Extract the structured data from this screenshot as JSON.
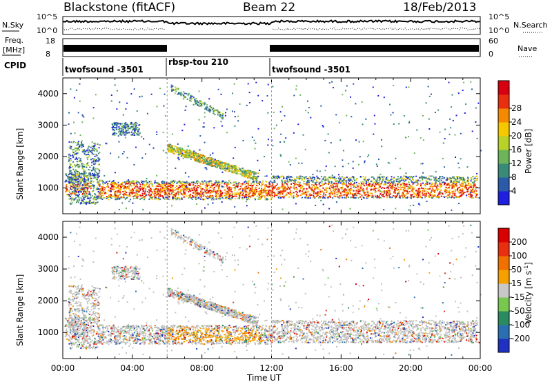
{
  "header": {
    "station": "Blackstone (fitACF)",
    "beam": "Beam 22",
    "date": "18/Feb/2013"
  },
  "top_panels": {
    "nsky_label": "N.Sky",
    "nsky_ticks": [
      "10^5",
      "10^0"
    ],
    "nsearch_label": "N.Search",
    "nsearch_ticks": [
      "10^5",
      "10^0"
    ],
    "freq_label_1": "Freq.",
    "freq_label_2": "[MHz]",
    "freq_ticks": [
      "18",
      "8"
    ],
    "nave_label": "Nave",
    "nave_ticks": [
      "60",
      "0"
    ],
    "cpid_label": "CPID",
    "programs": [
      {
        "name": "twofsound -3501",
        "start_hour": 0,
        "end_hour": 6
      },
      {
        "name": "rbsp-tou 210",
        "start_hour": 6,
        "end_hour": 12
      },
      {
        "name": "twofsound -3501",
        "start_hour": 12,
        "end_hour": 24
      }
    ]
  },
  "chart_data": [
    {
      "type": "heatmap",
      "title": "",
      "xlabel": "Time UT",
      "ylabel": "Slant Range [km]",
      "xlim": [
        0,
        24
      ],
      "ylim": [
        180,
        4500
      ],
      "x_ticks": [
        "00:00",
        "04:00",
        "08:00",
        "12:00",
        "16:00",
        "20:00",
        "00:00"
      ],
      "y_ticks": [
        "1000",
        "2000",
        "3000",
        "4000"
      ],
      "colorbar": {
        "label": "Power [dB]",
        "ticks": [
          "4",
          "8",
          "12",
          "16",
          "20",
          "24",
          "28"
        ],
        "colors": [
          "#1f1fe0",
          "#2a5aa8",
          "#3a8a78",
          "#6db35a",
          "#b8d22a",
          "#f5c800",
          "#f58a00",
          "#e83010",
          "#d80010"
        ]
      },
      "features": [
        {
          "name": "near-range band",
          "start_hour": 0.2,
          "end_hour": 23.8,
          "range_km": [
            700,
            1400
          ]
        },
        {
          "name": "descending echo",
          "start_hour": 6.0,
          "end_hour": 11.2,
          "range_km": [
            1400,
            2400
          ]
        },
        {
          "name": "far-range patch",
          "start_hour": 6.2,
          "end_hour": 9.2,
          "range_km": [
            3300,
            4300
          ]
        }
      ]
    },
    {
      "type": "heatmap",
      "title": "",
      "xlabel": "Time UT",
      "ylabel": "Slant Range [km]",
      "xlim": [
        0,
        24
      ],
      "ylim": [
        180,
        4500
      ],
      "x_ticks": [
        "00:00",
        "04:00",
        "08:00",
        "12:00",
        "16:00",
        "20:00",
        "00:00"
      ],
      "y_ticks": [
        "1000",
        "2000",
        "3000",
        "4000"
      ],
      "colorbar": {
        "label_main": "Velocity [m s",
        "label_sup": "-1",
        "label_end": "]",
        "ticks": [
          "200",
          "100",
          "50",
          "15",
          "-15",
          "-50",
          "-100",
          "-200"
        ],
        "colors": [
          "#2030c0",
          "#2a70b0",
          "#2a8a60",
          "#78c850",
          "#c8c8c8",
          "#f5a000",
          "#f07000",
          "#e83010",
          "#d80000"
        ]
      }
    }
  ],
  "colors": {
    "axis": "#000000",
    "ground_scatter": "#bebebe"
  }
}
